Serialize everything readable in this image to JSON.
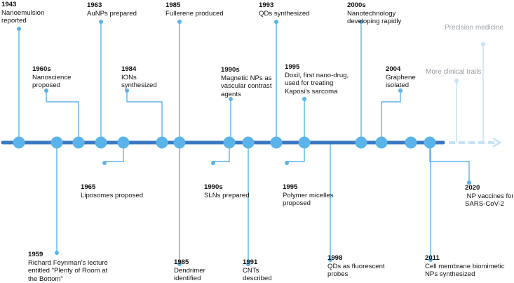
{
  "timeline": {
    "events": [
      {
        "year": "1943",
        "text": [
          "Nanoemulsion",
          "reported"
        ]
      },
      {
        "year": "1960s",
        "text": [
          "Nanoscience",
          "proposed"
        ]
      },
      {
        "year": "1959",
        "text": [
          "Richard Feynman's lecture",
          "entitled \"Plenty of Room at",
          "the Bottom\""
        ]
      },
      {
        "year": "1963",
        "text": [
          "AuNPs prepared"
        ]
      },
      {
        "year": "1965",
        "text": [
          "Liposomes proposed"
        ]
      },
      {
        "year": "1984",
        "text": [
          "IONs",
          "synthesized"
        ]
      },
      {
        "year": "1985",
        "text": [
          "Fullerene produced"
        ]
      },
      {
        "year": "1985",
        "text": [
          "Dendrimer",
          "identified"
        ]
      },
      {
        "year": "1990s",
        "text": [
          "SLNs prepared"
        ]
      },
      {
        "year": "1990s",
        "text": [
          "Magnetic NPs as",
          "vascular contrast",
          "agents"
        ]
      },
      {
        "year": "1991",
        "text": [
          "CNTs",
          "described"
        ]
      },
      {
        "year": "1993",
        "text": [
          "QDs synthesized"
        ]
      },
      {
        "year": "1995",
        "text": [
          "Polymer micelles",
          "proposed"
        ]
      },
      {
        "year": "1995",
        "text": [
          "Doxil, first nano-drug,",
          "used for treating",
          "Kaposi's sarcoma"
        ]
      },
      {
        "year": "1998",
        "text": [
          "QDs as fluorescent",
          "probes"
        ]
      },
      {
        "year": "2000s",
        "text": [
          "Nanotechnology",
          "developing rapidly"
        ]
      },
      {
        "year": "2004",
        "text": [
          "Graphene",
          "isolated"
        ]
      },
      {
        "year": "2011",
        "text": [
          "Cell membrane biomimetic",
          "NPs synthesized"
        ]
      },
      {
        "year": "2020",
        "text": [
          " NP vaccines for",
          "SARS-CoV-2"
        ]
      }
    ],
    "future": [
      {
        "text": "More clinical trails"
      },
      {
        "text": "Precision medicine"
      }
    ],
    "colors": {
      "axis": "#3a78c2",
      "node": "#5ab4ea",
      "faded": "#c7e3f7"
    }
  }
}
